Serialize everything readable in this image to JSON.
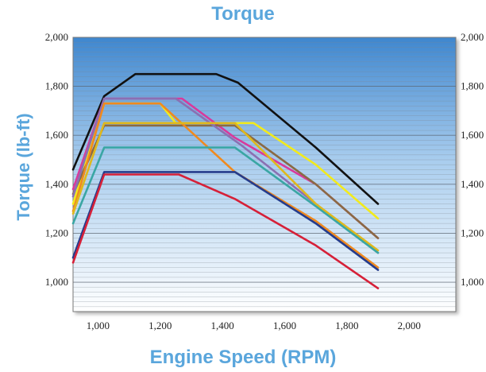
{
  "chart_data": {
    "type": "line",
    "title": "Torque",
    "xlabel": "Engine Speed (RPM)",
    "ylabel": "Torque (lb-ft)",
    "xlim": [
      920,
      2150
    ],
    "ylim": [
      880,
      2000
    ],
    "xticks": [
      1000,
      1200,
      1400,
      1600,
      1800,
      2000
    ],
    "xtick_labels": [
      "1,000",
      "1,200",
      "1,400",
      "1,600",
      "1,800",
      "2,000"
    ],
    "yticks": [
      1000,
      1200,
      1400,
      1600,
      1800,
      2000
    ],
    "ytick_labels": [
      "1,000",
      "1,200",
      "1,400",
      "1,600",
      "1,800",
      "2,000"
    ],
    "grid": "horizontal",
    "background": "blue gradient",
    "series": [
      {
        "color": "#111111",
        "points": [
          [
            920,
            1460
          ],
          [
            1020,
            1760
          ],
          [
            1120,
            1850
          ],
          [
            1380,
            1850
          ],
          [
            1450,
            1815
          ],
          [
            1700,
            1550
          ],
          [
            1900,
            1320
          ]
        ]
      },
      {
        "color": "#f2ea1c",
        "points": [
          [
            920,
            1320
          ],
          [
            1020,
            1730
          ],
          [
            1200,
            1730
          ],
          [
            1250,
            1650
          ],
          [
            1500,
            1650
          ],
          [
            1700,
            1480
          ],
          [
            1900,
            1260
          ]
        ]
      },
      {
        "color": "#d83a9c",
        "points": [
          [
            920,
            1380
          ],
          [
            1020,
            1750
          ],
          [
            1270,
            1750
          ],
          [
            1440,
            1590
          ],
          [
            1700,
            1400
          ],
          [
            1900,
            1180
          ]
        ]
      },
      {
        "color": "#8a6a44",
        "points": [
          [
            920,
            1360
          ],
          [
            1020,
            1640
          ],
          [
            1440,
            1640
          ],
          [
            1700,
            1400
          ],
          [
            1900,
            1180
          ]
        ]
      },
      {
        "color": "#8b6fb2",
        "points": [
          [
            920,
            1350
          ],
          [
            1020,
            1750
          ],
          [
            1250,
            1750
          ],
          [
            1460,
            1560
          ],
          [
            1700,
            1320
          ],
          [
            1900,
            1120
          ]
        ]
      },
      {
        "color": "#f08a1e",
        "points": [
          [
            920,
            1290
          ],
          [
            1020,
            1730
          ],
          [
            1200,
            1730
          ],
          [
            1440,
            1450
          ],
          [
            1700,
            1250
          ],
          [
            1900,
            1060
          ]
        ]
      },
      {
        "color": "#e0b81c",
        "points": [
          [
            920,
            1280
          ],
          [
            1020,
            1650
          ],
          [
            1440,
            1650
          ],
          [
            1700,
            1320
          ],
          [
            1900,
            1130
          ]
        ]
      },
      {
        "color": "#3aa6a4",
        "points": [
          [
            920,
            1240
          ],
          [
            1020,
            1550
          ],
          [
            1440,
            1550
          ],
          [
            1700,
            1310
          ],
          [
            1900,
            1120
          ]
        ]
      },
      {
        "color": "#253c8c",
        "points": [
          [
            920,
            1100
          ],
          [
            1020,
            1450
          ],
          [
            1440,
            1450
          ],
          [
            1700,
            1240
          ],
          [
            1900,
            1050
          ]
        ]
      },
      {
        "color": "#d62038",
        "points": [
          [
            920,
            1080
          ],
          [
            1020,
            1440
          ],
          [
            1260,
            1440
          ],
          [
            1440,
            1340
          ],
          [
            1700,
            1150
          ],
          [
            1900,
            975
          ]
        ]
      }
    ]
  }
}
